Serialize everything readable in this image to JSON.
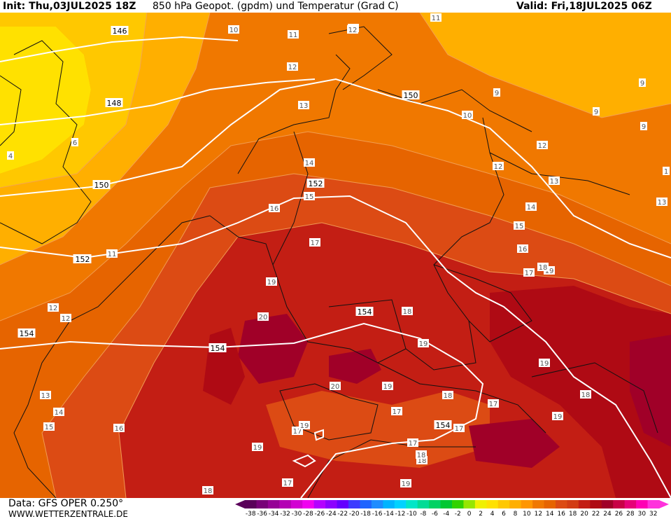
{
  "header": {
    "init": "Init: Thu,03JUL2025 18Z",
    "title": "850 hPa Geopot. (gpdm) und Temperatur (Grad C)",
    "valid": "Valid: Fri,18JUL2025 06Z"
  },
  "footer": {
    "data_source": "Data: GFS OPER 0.250°",
    "website": "WWW.WETTERZENTRALE.DE"
  },
  "colorbar": {
    "ticks": [
      "-38",
      "-36",
      "-34",
      "-32",
      "-30",
      "-28",
      "-26",
      "-24",
      "-22",
      "-20",
      "-18",
      "-16",
      "-14",
      "-12",
      "-10",
      "-8",
      "-6",
      "-4",
      "-2",
      "0",
      "2",
      "4",
      "6",
      "8",
      "10",
      "12",
      "14",
      "16",
      "18",
      "20",
      "22",
      "24",
      "26",
      "28",
      "30",
      "32"
    ],
    "colors": [
      "#5a005a",
      "#780078",
      "#960096",
      "#b400b4",
      "#d200d2",
      "#f000f0",
      "#b400ff",
      "#8c00ff",
      "#6400ff",
      "#3c3cff",
      "#1e64ff",
      "#1e8cff",
      "#00b4ff",
      "#00d2ff",
      "#00e6c8",
      "#00dc96",
      "#00d264",
      "#00c832",
      "#32d200",
      "#96e600",
      "#f0f000",
      "#ffe100",
      "#ffc800",
      "#ffaf00",
      "#ff9600",
      "#f07800",
      "#e66400",
      "#dc4b14",
      "#d23c14",
      "#c31e14",
      "#af0a14",
      "#a00028",
      "#c80046",
      "#e60078",
      "#ff00b4",
      "#ff32dc"
    ]
  },
  "geopotential_labels": [
    "146",
    "148",
    "150",
    "150",
    "152",
    "152",
    "152",
    "154",
    "154",
    "154",
    "154"
  ],
  "temperature_labels": [
    "10",
    "10",
    "11",
    "12",
    "13",
    "14",
    "15",
    "16",
    "17",
    "19",
    "20",
    "18",
    "19",
    "20",
    "20",
    "18",
    "17",
    "16",
    "15",
    "14",
    "13",
    "12",
    "11",
    "10",
    "9",
    "9",
    "9",
    "9",
    "13",
    "12",
    "12",
    "13",
    "14",
    "15",
    "16",
    "19",
    "17",
    "18",
    "17",
    "17",
    "18",
    "19",
    "18",
    "19",
    "17",
    "17",
    "19",
    "19",
    "19",
    "19",
    "17",
    "18",
    "16",
    "6",
    "4",
    "11",
    "12",
    "12",
    "18",
    "1"
  ],
  "map_colors": {
    "t6": "#ffc800",
    "t8": "#ffaf00",
    "t10": "#ff9600",
    "t12": "#f07800",
    "t14": "#e66400",
    "t16": "#dc4b14",
    "t18": "#c31e14",
    "t20": "#af0a14",
    "t22": "#a00028",
    "t4": "#ffe100"
  }
}
